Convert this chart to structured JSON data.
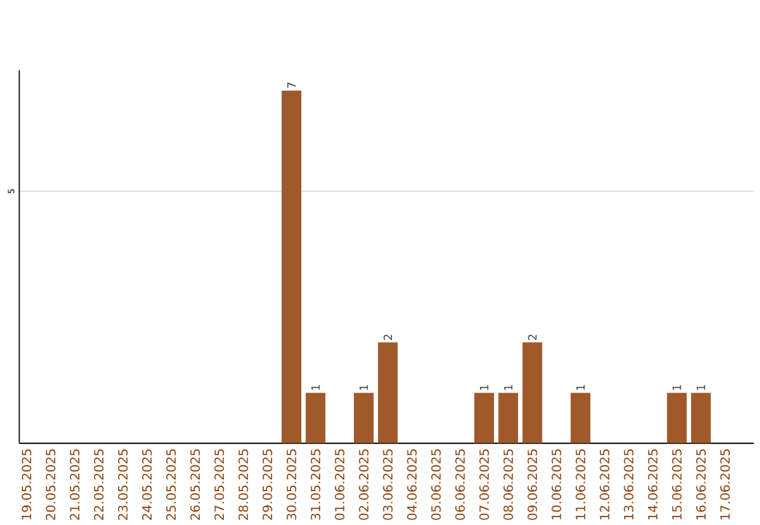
{
  "chart_data": {
    "type": "bar",
    "categories": [
      "19.05.2025",
      "20.05.2025",
      "21.05.2025",
      "22.05.2025",
      "23.05.2025",
      "24.05.2025",
      "25.05.2025",
      "26.05.2025",
      "27.05.2025",
      "28.05.2025",
      "29.05.2025",
      "30.05.2025",
      "31.05.2025",
      "01.06.2025",
      "02.06.2025",
      "03.06.2025",
      "04.06.2025",
      "05.06.2025",
      "06.06.2025",
      "07.06.2025",
      "08.06.2025",
      "09.06.2025",
      "10.06.2025",
      "11.06.2025",
      "12.06.2025",
      "13.06.2025",
      "14.06.2025",
      "15.06.2025",
      "16.06.2025",
      "17.06.2025"
    ],
    "values": [
      0,
      0,
      0,
      0,
      0,
      0,
      0,
      0,
      0,
      0,
      0,
      7,
      1,
      0,
      1,
      2,
      0,
      0,
      0,
      1,
      1,
      2,
      0,
      1,
      0,
      0,
      0,
      1,
      1,
      0
    ],
    "value_labels": [
      null,
      null,
      null,
      null,
      null,
      null,
      null,
      null,
      null,
      null,
      null,
      "7",
      "1",
      null,
      "1",
      "2",
      null,
      null,
      null,
      "1",
      "1",
      "2",
      null,
      "1",
      null,
      null,
      null,
      "1",
      "1",
      null
    ],
    "color": "#a0592a",
    "ylim": [
      0,
      7.4
    ],
    "yticks": [
      5
    ],
    "grid": "y"
  }
}
